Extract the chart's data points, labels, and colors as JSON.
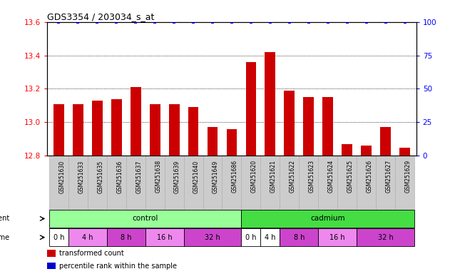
{
  "title": "GDS3354 / 203034_s_at",
  "samples": [
    "GSM251630",
    "GSM251633",
    "GSM251635",
    "GSM251636",
    "GSM251637",
    "GSM251638",
    "GSM251639",
    "GSM251640",
    "GSM251649",
    "GSM251686",
    "GSM251620",
    "GSM251621",
    "GSM251622",
    "GSM251623",
    "GSM251624",
    "GSM251625",
    "GSM251626",
    "GSM251627",
    "GSM251629"
  ],
  "bar_values": [
    13.11,
    13.11,
    13.13,
    13.14,
    13.21,
    13.11,
    13.11,
    13.09,
    12.97,
    12.96,
    13.36,
    13.42,
    13.19,
    13.15,
    13.15,
    12.87,
    12.86,
    12.97,
    12.85
  ],
  "percentile_values": [
    100,
    100,
    100,
    100,
    100,
    100,
    100,
    100,
    100,
    100,
    100,
    100,
    100,
    100,
    100,
    100,
    100,
    100,
    100
  ],
  "bar_color": "#cc0000",
  "percentile_color": "#0000cc",
  "ylim_left": [
    12.8,
    13.6
  ],
  "ylim_right": [
    0,
    100
  ],
  "yticks_left": [
    12.8,
    13.0,
    13.2,
    13.4,
    13.6
  ],
  "yticks_right": [
    0,
    25,
    50,
    75,
    100
  ],
  "grid_yticks": [
    13.0,
    13.2,
    13.4
  ],
  "background_color": "#ffffff",
  "label_bg_color": "#cccccc",
  "agent_control_color": "#99ff99",
  "agent_cadmium_color": "#44dd44",
  "time_colors": {
    "white": "#ffffff",
    "light_purple": "#ee88ee",
    "dark_purple": "#cc44cc"
  },
  "time_cells": [
    {
      "text": "0 h",
      "start": 0,
      "end": 0,
      "color": "#ffffff"
    },
    {
      "text": "4 h",
      "start": 1,
      "end": 2,
      "color": "#ee88ee"
    },
    {
      "text": "8 h",
      "start": 3,
      "end": 4,
      "color": "#cc44cc"
    },
    {
      "text": "16 h",
      "start": 5,
      "end": 6,
      "color": "#ee88ee"
    },
    {
      "text": "32 h",
      "start": 7,
      "end": 9,
      "color": "#cc44cc"
    },
    {
      "text": "0 h",
      "start": 10,
      "end": 10,
      "color": "#ffffff"
    },
    {
      "text": "4 h",
      "start": 11,
      "end": 11,
      "color": "#ffffff"
    },
    {
      "text": "8 h",
      "start": 12,
      "end": 13,
      "color": "#cc44cc"
    },
    {
      "text": "16 h",
      "start": 14,
      "end": 15,
      "color": "#ee88ee"
    },
    {
      "text": "32 h",
      "start": 16,
      "end": 18,
      "color": "#cc44cc"
    }
  ],
  "legend": [
    {
      "label": "transformed count",
      "color": "#cc0000"
    },
    {
      "label": "percentile rank within the sample",
      "color": "#0000cc"
    }
  ]
}
